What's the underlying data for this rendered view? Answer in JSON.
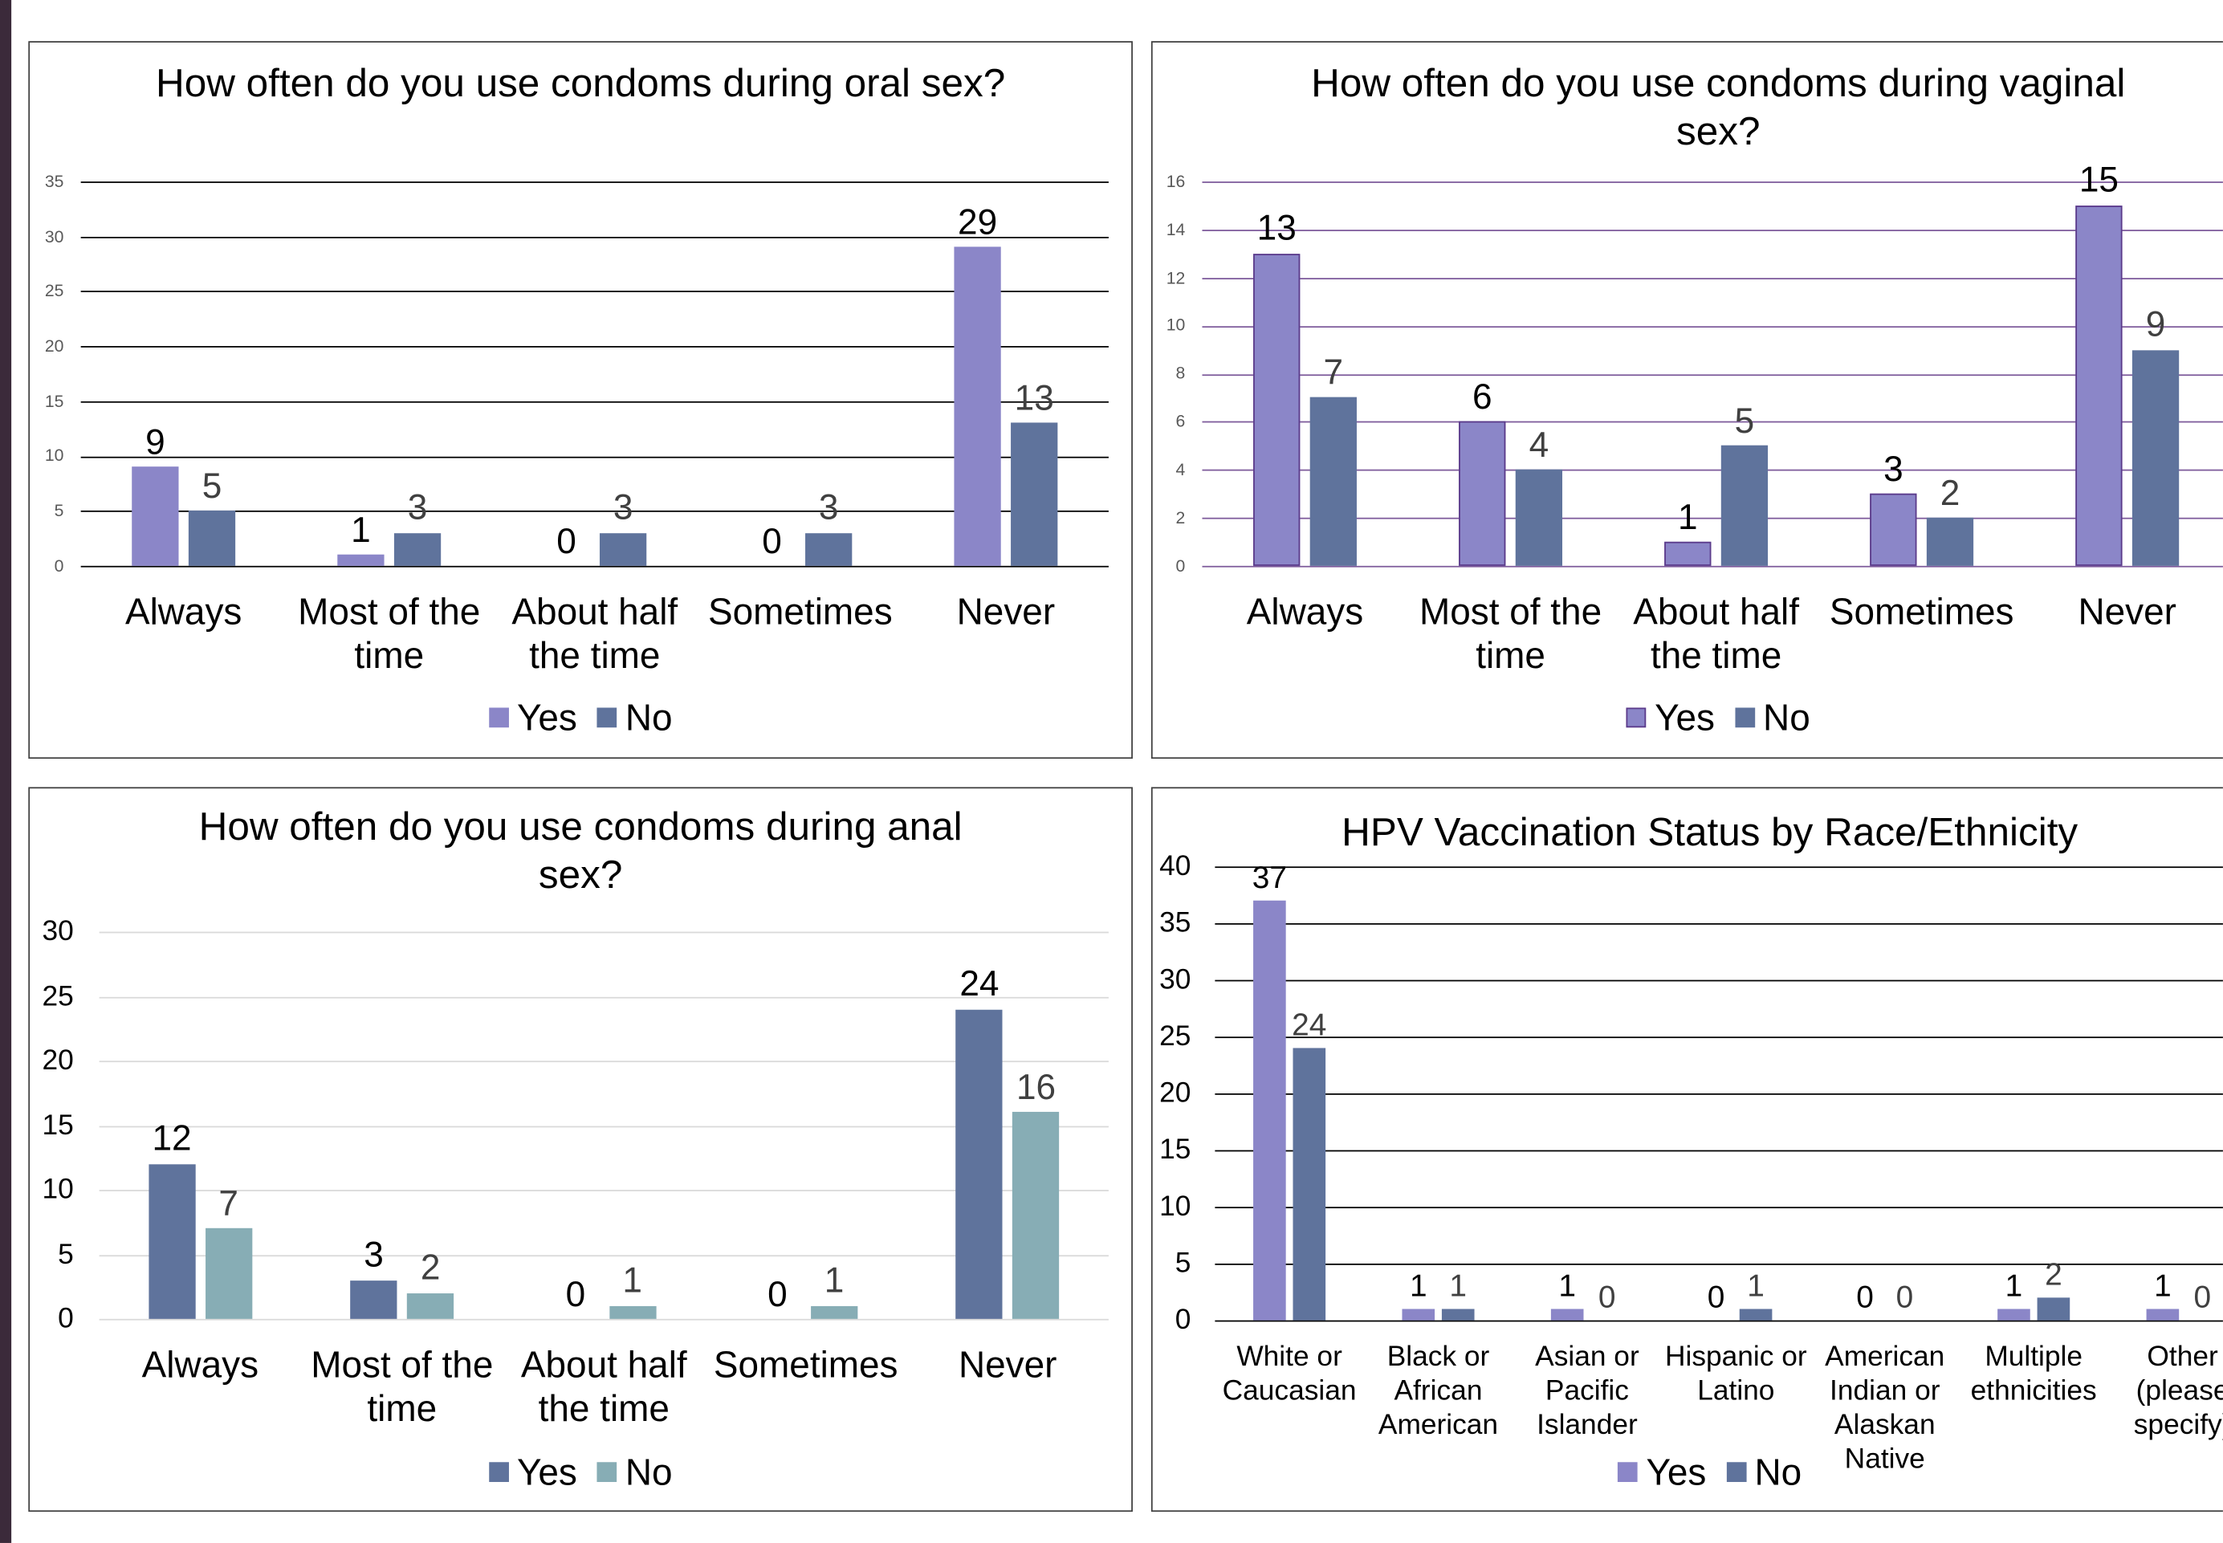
{
  "chart_data": [
    {
      "type": "bar",
      "title": "How often do you use condoms during oral sex?",
      "categories": [
        "Always",
        "Most of the time",
        "About half the time",
        "Sometimes",
        "Never"
      ],
      "series": [
        {
          "name": "Yes",
          "color": "#8b86c8",
          "values": [
            9,
            1,
            0,
            0,
            29
          ]
        },
        {
          "name": "No",
          "color": "#5f739c",
          "values": [
            5,
            3,
            3,
            3,
            13
          ]
        }
      ],
      "ylim": [
        0,
        35
      ],
      "yticks": [
        0,
        5,
        10,
        15,
        20,
        25,
        30,
        35
      ],
      "grid": true,
      "grid_color": "#000000"
    },
    {
      "type": "bar",
      "title": "How often do you use condoms during vaginal sex?",
      "categories": [
        "Always",
        "Most of the time",
        "About half the time",
        "Sometimes",
        "Never"
      ],
      "series": [
        {
          "name": "Yes",
          "color": "#8b86c8",
          "edgecolor": "#5b3a8a",
          "values": [
            13,
            6,
            1,
            3,
            15
          ]
        },
        {
          "name": "No",
          "color": "#5f739c",
          "values": [
            7,
            4,
            5,
            2,
            9
          ]
        }
      ],
      "ylim": [
        0,
        16
      ],
      "yticks": [
        0,
        2,
        4,
        6,
        8,
        10,
        12,
        14,
        16
      ],
      "grid": true,
      "grid_color": "#7d5a9b"
    },
    {
      "type": "bar",
      "title": "How often do you use condoms during anal sex?",
      "categories": [
        "Always",
        "Most of the time",
        "About half the time",
        "Sometimes",
        "Never"
      ],
      "series": [
        {
          "name": "Yes",
          "color": "#5f739c",
          "values": [
            12,
            3,
            0,
            0,
            24
          ]
        },
        {
          "name": "No",
          "color": "#87adb5",
          "values": [
            7,
            2,
            1,
            1,
            16
          ]
        }
      ],
      "ylim": [
        0,
        30
      ],
      "yticks": [
        0,
        5,
        10,
        15,
        20,
        25,
        30
      ],
      "grid": true,
      "grid_color": "#d9d9d9"
    },
    {
      "type": "bar",
      "title": "HPV Vaccination Status by Race/Ethnicity",
      "categories": [
        "White or Caucasian",
        "Black or African American",
        "Asian or Pacific Islander",
        "Hispanic or Latino",
        "American Indian or Alaskan Native",
        "Multiple ethnicities",
        "Other (please specify)"
      ],
      "series": [
        {
          "name": "Yes",
          "color": "#8b86c8",
          "values": [
            37,
            1,
            1,
            0,
            0,
            1,
            1
          ]
        },
        {
          "name": "No",
          "color": "#5f739c",
          "values": [
            24,
            1,
            0,
            1,
            0,
            2,
            0
          ]
        }
      ],
      "ylim": [
        0,
        40
      ],
      "yticks": [
        0,
        5,
        10,
        15,
        20,
        25,
        30,
        35,
        40
      ],
      "grid": true,
      "grid_color": "#000000"
    }
  ]
}
